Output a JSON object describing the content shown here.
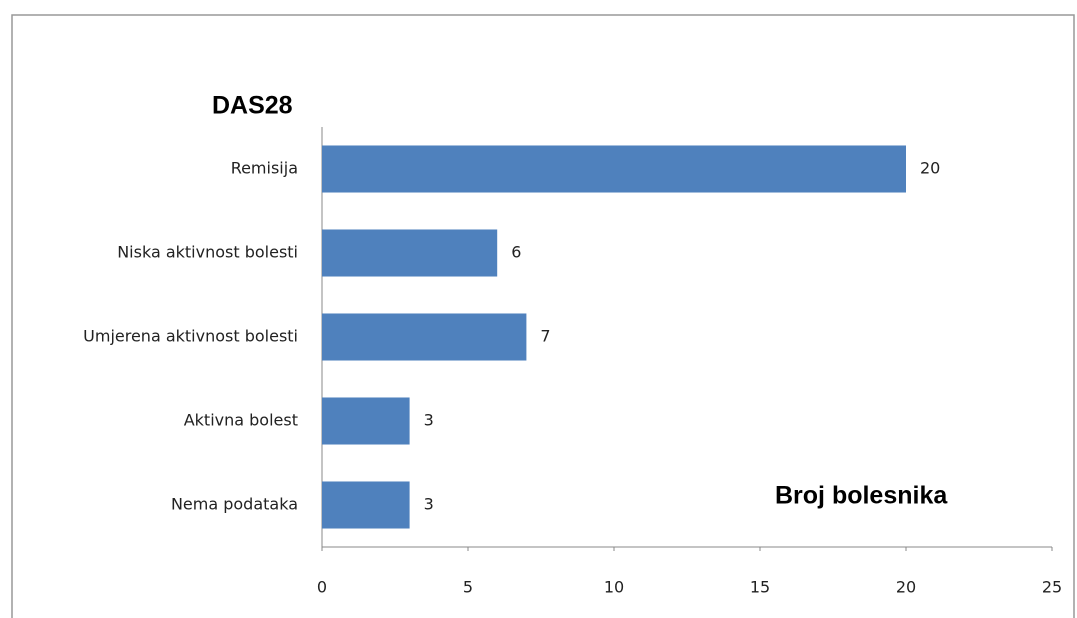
{
  "chart_data": {
    "type": "bar",
    "orientation": "horizontal",
    "title": "DAS28",
    "x_label": "Broj bolesnika",
    "categories": [
      "Remisija",
      "Niska aktivnost  bolesti",
      "Umjerena aktivnost bolesti",
      "Aktivna bolest",
      "Nema podataka"
    ],
    "values": [
      20,
      6,
      7,
      3,
      3
    ],
    "color": "#4f81bd",
    "xlim": [
      0,
      25
    ],
    "xticks": [
      0,
      5,
      10,
      15,
      20,
      25
    ],
    "grid": false
  }
}
